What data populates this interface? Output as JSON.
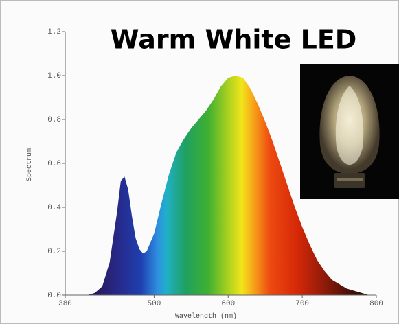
{
  "chart_data": {
    "type": "area",
    "title": "Warm White LED",
    "x_label": "Wavelength (nm)",
    "y_label": "Spectrum",
    "x": [
      400,
      410,
      420,
      430,
      440,
      450,
      455,
      460,
      465,
      470,
      475,
      480,
      485,
      490,
      500,
      510,
      520,
      530,
      540,
      550,
      560,
      570,
      580,
      590,
      600,
      610,
      620,
      630,
      640,
      650,
      660,
      670,
      680,
      690,
      700,
      710,
      720,
      730,
      740,
      750,
      760,
      770,
      780,
      790,
      800
    ],
    "values": [
      0,
      0,
      0.01,
      0.04,
      0.15,
      0.38,
      0.52,
      0.54,
      0.48,
      0.36,
      0.26,
      0.21,
      0.19,
      0.2,
      0.28,
      0.42,
      0.55,
      0.65,
      0.71,
      0.76,
      0.8,
      0.84,
      0.89,
      0.95,
      0.99,
      1.0,
      0.99,
      0.94,
      0.87,
      0.79,
      0.7,
      0.6,
      0.5,
      0.4,
      0.31,
      0.23,
      0.16,
      0.11,
      0.07,
      0.05,
      0.03,
      0.02,
      0.01,
      0,
      0
    ],
    "xlim": [
      380,
      800
    ],
    "xticks": [
      380,
      500,
      600,
      700,
      800
    ],
    "ylim": [
      0,
      1.2
    ],
    "yticks": [
      {
        "value": 0,
        "label": "0.0"
      },
      {
        "value": 0.2,
        "label": "0.2"
      },
      {
        "value": 0.4,
        "label": "0.4"
      },
      {
        "value": 0.6,
        "label": "0.6"
      },
      {
        "value": 0.8,
        "label": "0.8"
      },
      {
        "value": 1,
        "label": "1.0"
      },
      {
        "value": 1.2,
        "label": "1.2"
      }
    ],
    "grid": false
  }
}
